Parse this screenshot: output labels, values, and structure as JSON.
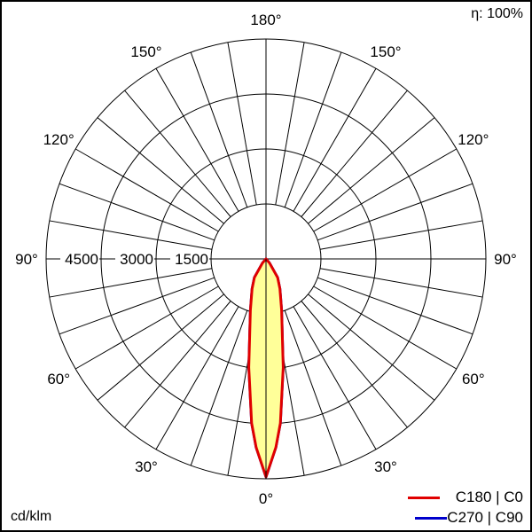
{
  "chart_data": {
    "type": "polar",
    "unit_label": "cd/klm",
    "efficiency_label": "η: 100%",
    "radial_ticks": [
      1500,
      3000,
      4500
    ],
    "radial_max": 6000,
    "angle_labels": [
      "0°",
      "30°",
      "60°",
      "90°",
      "120°",
      "150°",
      "180°"
    ],
    "angle_label_values": [
      0,
      30,
      60,
      90,
      120,
      150,
      180
    ],
    "spoke_step_deg": 10,
    "grid": true,
    "legend_placement": "bottom-right",
    "series": [
      {
        "name": "C180 | C0",
        "color": "#e00000",
        "fill": "#ffff99",
        "angles": [
          0,
          3,
          5,
          9,
          17,
          25,
          32,
          40,
          45
        ],
        "values": [
          5950,
          5150,
          4500,
          3000,
          1460,
          900,
          600,
          150,
          0
        ]
      },
      {
        "name": "C270 | C90",
        "color": "#0000cc",
        "angles": [
          0,
          3,
          5,
          9,
          17,
          25,
          32,
          40,
          45
        ],
        "values": [
          5950,
          5150,
          4500,
          3000,
          1460,
          900,
          600,
          150,
          0
        ]
      }
    ]
  }
}
